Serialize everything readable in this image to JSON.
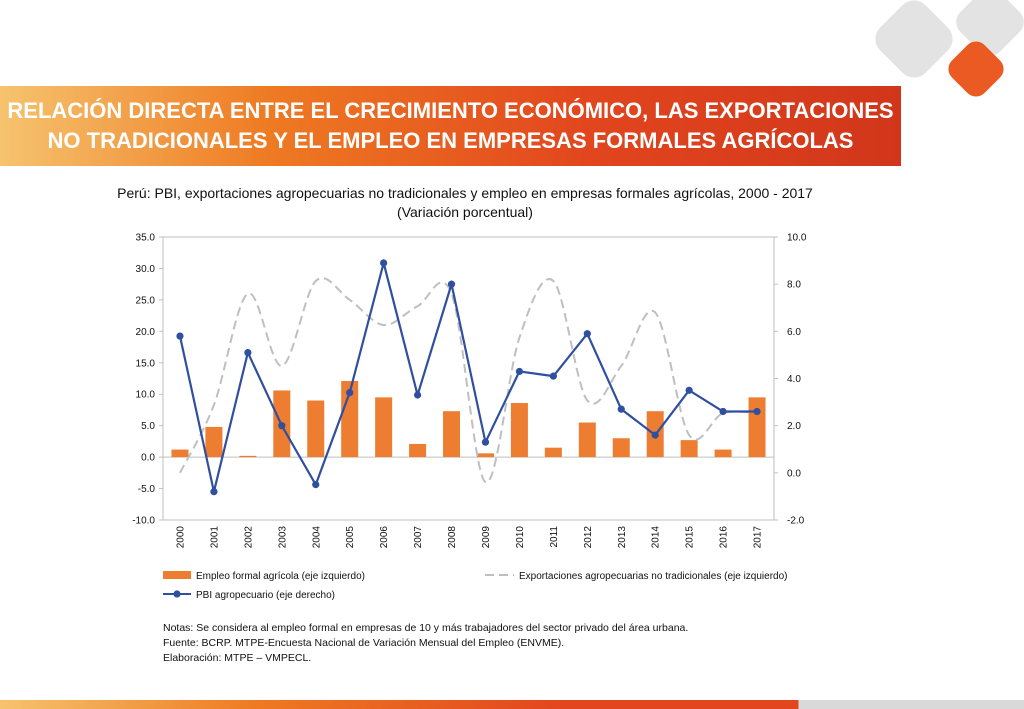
{
  "slide": {
    "title_line1": "RELACIÓN DIRECTA ENTRE EL CRECIMIENTO ECONÓMICO, LAS EXPORTACIONES",
    "title_line2": "NO TRADICIONALES Y EL EMPLEO EN EMPRESAS FORMALES AGRÍCOLAS",
    "notes": [
      "Notas: Se considera al empleo formal en empresas de 10 y más trabajadores del sector privado del área urbana.",
      "Fuente: BCRP. MTPE-Encuesta Nacional de Variación Mensual del Empleo (ENVME).",
      "Elaboración: MTPE – VMPECL."
    ],
    "colors": {
      "accent_orange": "#ee7a22",
      "accent_red": "#d1361b",
      "logo_grey": "#e0e0e0"
    }
  },
  "chart_data": {
    "type": "bar",
    "title": "Perú: PBI, exportaciones agropecuarias no tradicionales y empleo en empresas formales agrícolas, 2000 - 2017",
    "subtitle": "(Variación porcentual)",
    "categories": [
      "2000",
      "2001",
      "2002",
      "2003",
      "2004",
      "2005",
      "2006",
      "2007",
      "2008",
      "2009",
      "2010",
      "2011",
      "2012",
      "2013",
      "2014",
      "2015",
      "2016",
      "2017"
    ],
    "y_left": {
      "min": -10,
      "max": 35,
      "ticks": [
        "35.0",
        "30.0",
        "25.0",
        "20.0",
        "15.0",
        "10.0",
        "5.0",
        "0.0",
        "-5.0",
        "-10.0"
      ]
    },
    "y_right": {
      "min": -2,
      "max": 10,
      "ticks": [
        "10.0",
        "8.0",
        "6.0",
        "4.0",
        "2.0",
        "0.0",
        "-2.0"
      ]
    },
    "series": [
      {
        "name": "Empleo formal agrícola (eje izquierdo)",
        "type": "bar",
        "axis": "left",
        "color": "#ed7d31",
        "values": [
          1.2,
          4.8,
          0.2,
          10.6,
          9.0,
          12.1,
          9.5,
          2.1,
          7.3,
          0.6,
          8.6,
          1.5,
          5.5,
          3.0,
          7.3,
          2.7,
          1.2,
          9.5
        ]
      },
      {
        "name": "Exportaciones agropecuarias no tradicionales (eje izquierdo)",
        "type": "line",
        "style": "dashed",
        "axis": "left",
        "color": "#bfbfbf",
        "values": [
          -2.5,
          8.3,
          26.0,
          14.5,
          28.0,
          25.0,
          21.0,
          24.0,
          26.0,
          -4.0,
          19.0,
          28.0,
          9.0,
          14.5,
          23.0,
          3.5,
          7.0,
          7.0
        ]
      },
      {
        "name": "PBI agropecuario (eje derecho)",
        "type": "line",
        "style": "solid-markers",
        "axis": "right",
        "color": "#2f4f9f",
        "values": [
          5.8,
          -0.8,
          5.1,
          2.0,
          -0.5,
          3.4,
          8.9,
          3.3,
          8.0,
          1.3,
          4.3,
          4.1,
          5.9,
          2.7,
          1.6,
          3.5,
          2.6,
          2.6
        ]
      }
    ],
    "legend_position": "bottom",
    "grid": false
  }
}
